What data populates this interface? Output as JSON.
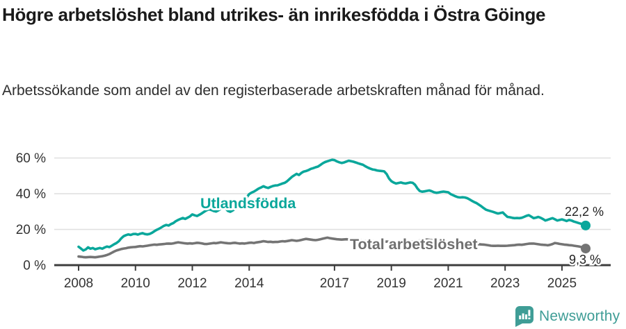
{
  "header": {
    "title": "Högre arbetslöshet bland utrikes- än inrikesfödda i Östra Göinge",
    "subtitle": "Arbetssökande som andel av den registerbaserade arbetskraften månad för månad."
  },
  "footer": {
    "brand": "Newsworthy"
  },
  "colors": {
    "accent_teal": "#0aa79b",
    "series_gray": "#747474",
    "grid": "#e0e0e0",
    "axis": "#3d3d3d",
    "axis_text": "#333333",
    "value_text": "#222222",
    "logo_teal": "#3f9d96"
  },
  "chart_data": {
    "type": "line",
    "title": "Högre arbetslöshet bland utrikes- än inrikesfödda i Östra Göinge",
    "subtitle": "Arbetssökande som andel av den registerbaserade arbetskraften månad för månad.",
    "x_unit": "month",
    "x_start": "2008-01",
    "x_end": "2025-11",
    "grid": "horizontal",
    "legend_position": "inline-labels",
    "ylim": [
      0,
      62
    ],
    "y_ticks": {
      "values": [
        0,
        20,
        40,
        60
      ],
      "labels": [
        "0 %",
        "20 %",
        "40 %",
        "60 %"
      ]
    },
    "x_tick_labels": [
      "2008",
      "2010",
      "2012",
      "2014",
      "2017",
      "2019",
      "2021",
      "2023",
      "2025"
    ],
    "series": [
      {
        "name": "Utlandsfödda",
        "color": "#0aa79b",
        "end_label": "22,2 %",
        "values": [
          10.3,
          9.3,
          8.2,
          8.8,
          10.0,
          9.2,
          9.6,
          8.9,
          9.3,
          9.6,
          9.2,
          9.9,
          10.4,
          10.1,
          10.9,
          11.7,
          12.4,
          13.4,
          15.0,
          16.2,
          16.8,
          17.2,
          16.9,
          17.4,
          17.5,
          17.1,
          17.6,
          17.9,
          17.4,
          17.2,
          17.5,
          18.1,
          19.0,
          19.8,
          20.4,
          21.2,
          22.0,
          22.5,
          22.2,
          23.0,
          23.6,
          24.6,
          25.3,
          25.9,
          26.4,
          25.9,
          26.6,
          27.3,
          28.4,
          27.9,
          27.5,
          28.2,
          29.0,
          29.9,
          30.7,
          31.3,
          30.9,
          30.3,
          30.0,
          30.7,
          31.6,
          32.3,
          31.9,
          30.4,
          29.9,
          30.6,
          31.5,
          32.5,
          33.5,
          34.5,
          36.0,
          38.0,
          39.8,
          40.6,
          41.2,
          42.0,
          42.9,
          43.5,
          44.2,
          43.6,
          43.2,
          43.8,
          44.3,
          44.6,
          44.7,
          45.2,
          45.7,
          46.1,
          47.0,
          48.2,
          49.4,
          50.3,
          51.1,
          50.5,
          51.6,
          52.4,
          52.7,
          53.2,
          53.9,
          54.3,
          54.8,
          55.2,
          56.1,
          57.0,
          57.7,
          58.2,
          58.6,
          59.0,
          58.8,
          58.1,
          57.6,
          57.2,
          57.5,
          58.0,
          58.5,
          58.2,
          57.9,
          57.5,
          57.0,
          56.6,
          56.2,
          55.4,
          54.7,
          54.1,
          53.6,
          53.4,
          53.0,
          52.8,
          52.7,
          52.5,
          51.0,
          48.5,
          47.0,
          46.2,
          45.7,
          46.0,
          46.3,
          45.9,
          45.7,
          46.0,
          46.3,
          46.1,
          45.0,
          43.0,
          41.5,
          41.1,
          41.3,
          41.6,
          41.8,
          41.4,
          40.8,
          40.5,
          40.7,
          41.0,
          41.2,
          41.0,
          40.8,
          39.8,
          39.2,
          38.6,
          38.1,
          37.9,
          38.0,
          37.9,
          37.5,
          36.8,
          36.0,
          35.3,
          34.7,
          33.8,
          32.9,
          31.9,
          31.0,
          30.6,
          30.2,
          29.8,
          29.3,
          28.9,
          29.2,
          29.5,
          28.2,
          27.0,
          26.8,
          26.5,
          26.3,
          26.4,
          26.3,
          26.5,
          27.0,
          27.6,
          28.0,
          27.2,
          26.3,
          26.6,
          27.0,
          26.5,
          25.8,
          25.0,
          25.4,
          25.9,
          26.3,
          25.7,
          25.0,
          25.3,
          25.6,
          25.2,
          24.7,
          25.3,
          25.0,
          24.4,
          24.0,
          23.6,
          23.2,
          22.7,
          22.2
        ]
      },
      {
        "name": "Total arbetslöshet",
        "color": "#747474",
        "end_label": "9,3 %",
        "values": [
          4.8,
          4.7,
          4.5,
          4.4,
          4.5,
          4.6,
          4.5,
          4.4,
          4.6,
          4.8,
          5.0,
          5.3,
          5.7,
          6.2,
          6.9,
          7.6,
          8.2,
          8.6,
          9.0,
          9.3,
          9.5,
          9.8,
          10.0,
          10.1,
          10.2,
          10.4,
          10.6,
          10.5,
          10.7,
          10.9,
          11.1,
          11.3,
          11.5,
          11.4,
          11.6,
          11.7,
          11.8,
          12.0,
          12.1,
          12.0,
          12.2,
          12.5,
          12.8,
          12.6,
          12.4,
          12.2,
          12.1,
          12.2,
          12.1,
          12.3,
          12.5,
          12.4,
          12.2,
          11.9,
          11.8,
          12.0,
          12.2,
          12.4,
          12.3,
          12.5,
          12.8,
          12.6,
          12.4,
          12.3,
          12.2,
          12.4,
          12.5,
          12.3,
          12.1,
          12.2,
          12.1,
          12.3,
          12.5,
          12.6,
          12.4,
          12.7,
          12.9,
          13.1,
          13.4,
          13.2,
          13.0,
          13.1,
          12.9,
          13.0,
          13.0,
          13.2,
          13.4,
          13.3,
          13.5,
          13.7,
          14.0,
          13.8,
          13.6,
          13.8,
          14.1,
          14.4,
          14.7,
          14.5,
          14.3,
          14.1,
          14.0,
          14.2,
          14.5,
          14.8,
          15.1,
          15.4,
          15.1,
          14.9,
          14.7,
          14.5,
          14.4,
          14.3,
          14.4,
          14.5,
          14.4,
          14.2,
          14.0,
          13.9,
          13.8,
          13.9,
          13.8,
          13.6,
          13.5,
          13.4,
          13.5,
          13.6,
          13.5,
          13.3,
          13.2,
          13.1,
          13.2,
          13.1,
          13.2,
          13.0,
          12.9,
          13.0,
          13.1,
          13.0,
          12.9,
          13.0,
          13.1,
          13.2,
          13.3,
          13.5,
          13.8,
          14.0,
          14.1,
          14.3,
          14.2,
          14.0,
          13.9,
          13.8,
          13.7,
          13.5,
          13.4,
          13.3,
          13.2,
          13.0,
          12.9,
          12.7,
          12.6,
          12.5,
          12.4,
          12.3,
          12.2,
          12.1,
          12.0,
          11.9,
          11.8,
          11.7,
          11.6,
          11.5,
          11.3,
          11.1,
          10.9,
          10.8,
          10.8,
          10.9,
          10.8,
          10.8,
          10.8,
          10.9,
          11.0,
          11.1,
          11.2,
          11.4,
          11.5,
          11.4,
          11.6,
          11.8,
          12.0,
          12.1,
          12.1,
          11.9,
          11.7,
          11.5,
          11.4,
          11.3,
          11.1,
          11.4,
          11.8,
          12.4,
          12.2,
          11.9,
          11.7,
          11.5,
          11.4,
          11.2,
          11.1,
          10.9,
          10.7,
          10.5,
          10.2,
          9.8,
          9.3
        ]
      }
    ]
  }
}
